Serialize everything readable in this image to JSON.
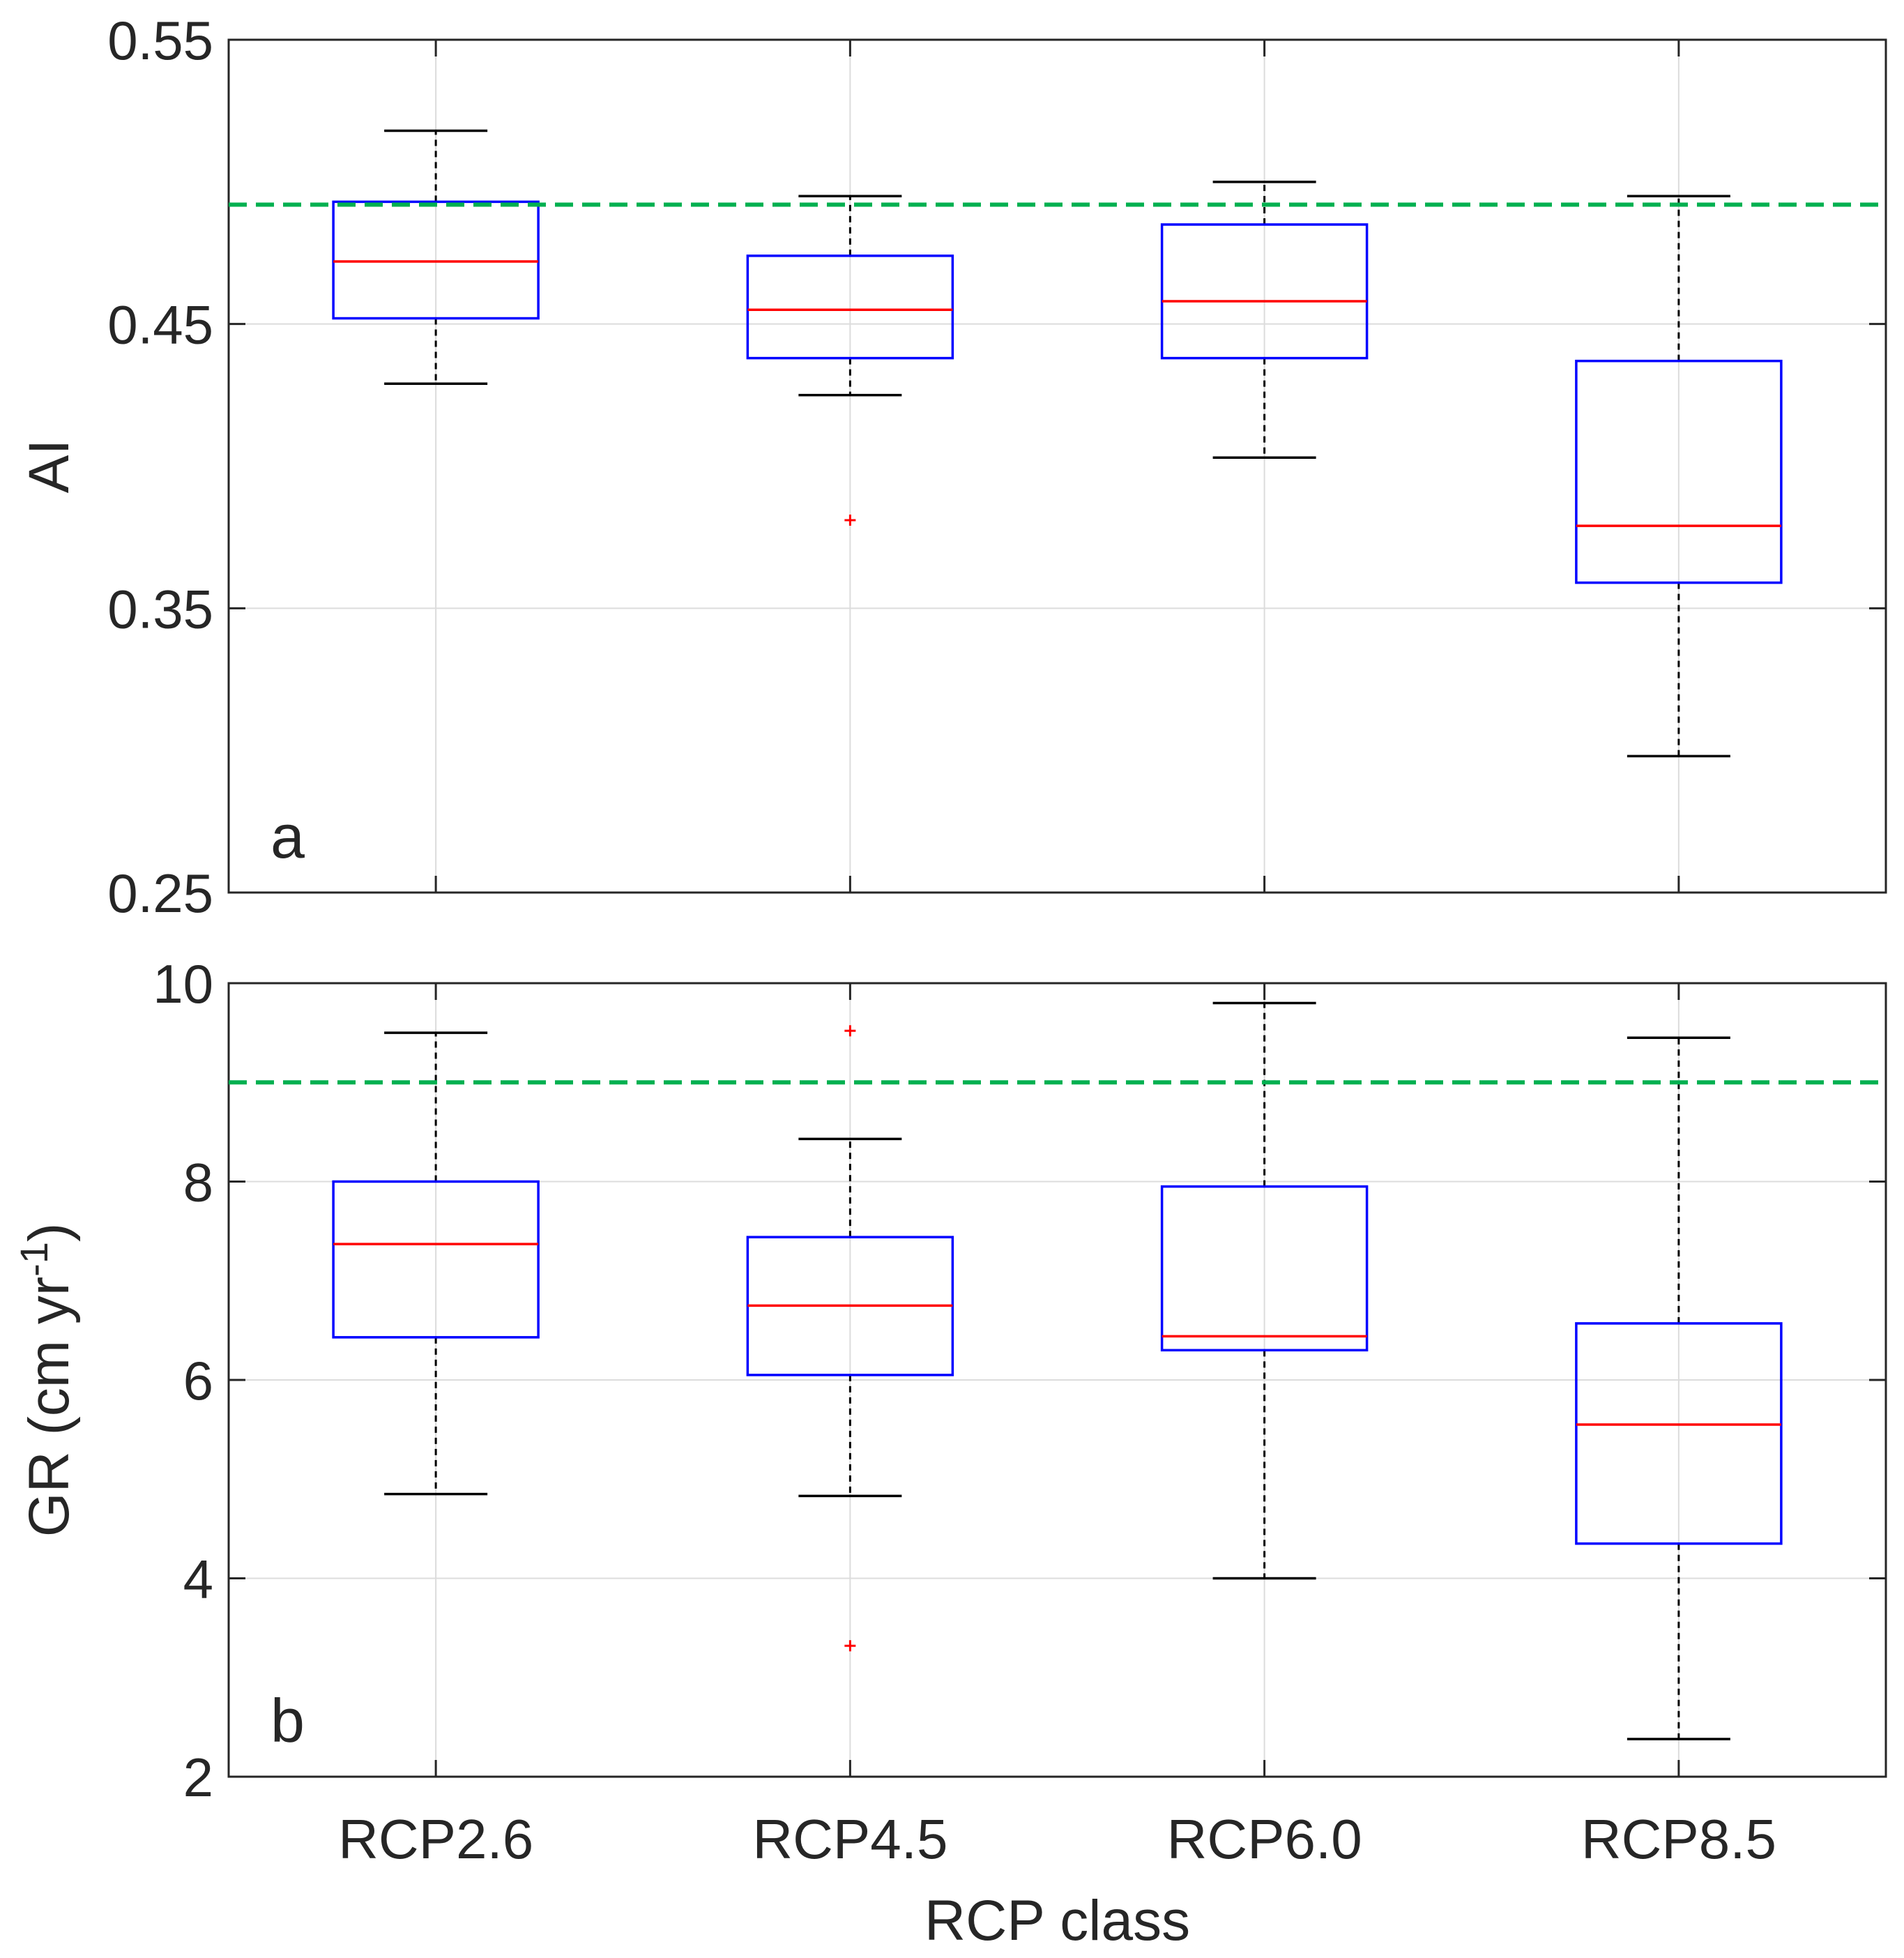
{
  "chart_data": [
    {
      "type": "boxplot",
      "panel_label": "a",
      "ylabel": "AI",
      "ylim": [
        0.25,
        0.55
      ],
      "yticks": [
        0.25,
        0.35,
        0.45,
        0.55
      ],
      "ytick_labels": [
        "0.25",
        "0.35",
        "0.45",
        "0.55"
      ],
      "categories": [
        "RCP2.6",
        "RCP4.5",
        "RCP6.0",
        "RCP8.5"
      ],
      "grid": true,
      "reference_line": {
        "value": 0.492,
        "color": "#00b050",
        "style": "dashed"
      },
      "boxes": [
        {
          "category": "RCP2.6",
          "whisker_low": 0.429,
          "q1": 0.452,
          "median": 0.472,
          "q3": 0.493,
          "whisker_high": 0.518,
          "outliers": []
        },
        {
          "category": "RCP4.5",
          "whisker_low": 0.425,
          "q1": 0.438,
          "median": 0.455,
          "q3": 0.474,
          "whisker_high": 0.495,
          "outliers": [
            0.381
          ]
        },
        {
          "category": "RCP6.0",
          "whisker_low": 0.403,
          "q1": 0.438,
          "median": 0.458,
          "q3": 0.485,
          "whisker_high": 0.5,
          "outliers": []
        },
        {
          "category": "RCP8.5",
          "whisker_low": 0.298,
          "q1": 0.359,
          "median": 0.379,
          "q3": 0.437,
          "whisker_high": 0.495,
          "outliers": []
        }
      ]
    },
    {
      "type": "boxplot",
      "panel_label": "b",
      "ylabel": "GR (cm yr",
      "ylabel_superscript": "-1",
      "ylabel_suffix": ")",
      "xlabel": "RCP class",
      "ylim": [
        2,
        10
      ],
      "yticks": [
        2,
        4,
        6,
        8,
        10
      ],
      "ytick_labels": [
        "2",
        "4",
        "6",
        "8",
        "10"
      ],
      "categories": [
        "RCP2.6",
        "RCP4.5",
        "RCP6.0",
        "RCP8.5"
      ],
      "grid": true,
      "reference_line": {
        "value": 9.0,
        "color": "#00b050",
        "style": "dashed"
      },
      "boxes": [
        {
          "category": "RCP2.6",
          "whisker_low": 4.85,
          "q1": 6.43,
          "median": 7.37,
          "q3": 8.0,
          "whisker_high": 9.5,
          "outliers": []
        },
        {
          "category": "RCP4.5",
          "whisker_low": 4.83,
          "q1": 6.05,
          "median": 6.75,
          "q3": 7.44,
          "whisker_high": 8.43,
          "outliers": [
            9.52,
            3.32
          ]
        },
        {
          "category": "RCP6.0",
          "whisker_low": 4.0,
          "q1": 6.3,
          "median": 6.44,
          "q3": 7.95,
          "whisker_high": 9.8,
          "outliers": []
        },
        {
          "category": "RCP8.5",
          "whisker_low": 2.38,
          "q1": 4.35,
          "median": 5.55,
          "q3": 6.57,
          "whisker_high": 9.45,
          "outliers": []
        }
      ]
    }
  ],
  "colors": {
    "box": "#0000ff",
    "median": "#ff0000",
    "whisker": "#000000",
    "outlier": "#ff0000",
    "reference": "#00b050",
    "grid": "#dcdcdc",
    "axis": "#262626"
  }
}
